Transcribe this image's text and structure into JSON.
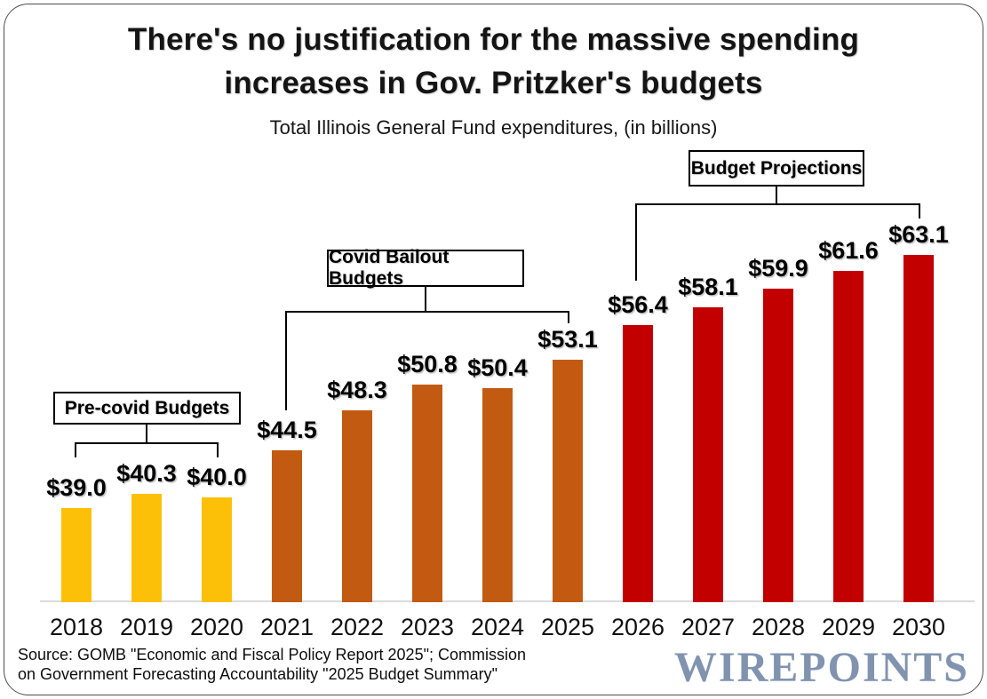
{
  "header": {
    "title_line1": "There's no justification for the massive spending",
    "title_line2": "increases in Gov. Pritzker's budgets",
    "subtitle": "Total Illinois General Fund expenditures, (in billions)"
  },
  "chart_data": {
    "type": "bar",
    "title": "There's no justification for the massive spending increases in Gov. Pritzker's budgets",
    "subtitle": "Total Illinois General Fund expenditures, (in billions)",
    "xlabel": "",
    "ylabel": "",
    "categories": [
      "2018",
      "2019",
      "2020",
      "2021",
      "2022",
      "2023",
      "2024",
      "2025",
      "2026",
      "2027",
      "2028",
      "2029",
      "2030"
    ],
    "values": [
      39.0,
      40.3,
      40.0,
      44.5,
      48.3,
      50.8,
      50.4,
      53.1,
      56.4,
      58.1,
      59.9,
      61.6,
      63.1
    ],
    "value_labels": [
      "$39.0",
      "$40.3",
      "$40.0",
      "$44.5",
      "$48.3",
      "$50.8",
      "$50.4",
      "$53.1",
      "$56.4",
      "$58.1",
      "$59.9",
      "$61.6",
      "$63.1"
    ],
    "group_index": [
      0,
      0,
      0,
      1,
      1,
      1,
      1,
      1,
      2,
      2,
      2,
      2,
      2
    ],
    "groups": [
      {
        "label": "Pre-covid Budgets",
        "years": [
          "2018",
          "2020"
        ],
        "color": "#FDC008"
      },
      {
        "label": "Covid Bailout Budgets",
        "years": [
          "2021",
          "2025"
        ],
        "color": "#C35A11"
      },
      {
        "label": "Budget Projections",
        "years": [
          "2026",
          "2030"
        ],
        "color": "#C20000"
      }
    ],
    "ylim": [
      30,
      65
    ],
    "grid": false,
    "legend_position": "none"
  },
  "footer": {
    "source_line1": "Source: GOMB \"Economic and Fiscal Policy Report 2025\"; Commission",
    "source_line2": "on Government Forecasting Accountability  \"2025 Budget Summary\"",
    "logo": "WIREPOINTS",
    "logo_color": "#8193AF"
  },
  "colors": {
    "pre_covid_bar": "#FDC008",
    "covid_bailout_bar": "#C35A11",
    "projection_bar": "#C20000",
    "axis_line": "#DBDBDB",
    "callout_border": "#000000",
    "frame_border": "#4d4d4d"
  }
}
